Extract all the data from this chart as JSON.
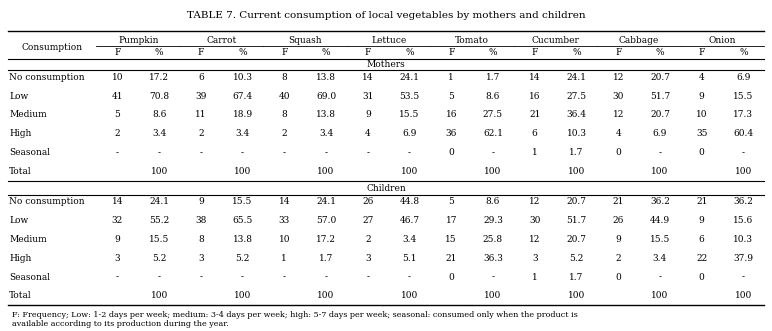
{
  "title": "TABLE 7. Current consumption of local vegetables by mothers and children",
  "footnote": "F: Frequency; Low: 1-2 days per week; medium: 3-4 days per week; high: 5-7 days per week; seasonal: consumed only when the product is\navailable according to its production during the year.",
  "vegetables": [
    "Pumpkin",
    "Carrot",
    "Squash",
    "Lettuce",
    "Tomato",
    "Cucumber",
    "Cabbage",
    "Onion"
  ],
  "consumption_levels": [
    "No consumption",
    "Low",
    "Medium",
    "High",
    "Seasonal",
    "Total"
  ],
  "mothers_data": [
    [
      "10",
      "17.2",
      "6",
      "10.3",
      "8",
      "13.8",
      "14",
      "24.1",
      "1",
      "1.7",
      "14",
      "24.1",
      "12",
      "20.7",
      "4",
      "6.9"
    ],
    [
      "41",
      "70.8",
      "39",
      "67.4",
      "40",
      "69.0",
      "31",
      "53.5",
      "5",
      "8.6",
      "16",
      "27.5",
      "30",
      "51.7",
      "9",
      "15.5"
    ],
    [
      "5",
      "8.6",
      "11",
      "18.9",
      "8",
      "13.8",
      "9",
      "15.5",
      "16",
      "27.5",
      "21",
      "36.4",
      "12",
      "20.7",
      "10",
      "17.3"
    ],
    [
      "2",
      "3.4",
      "2",
      "3.4",
      "2",
      "3.4",
      "4",
      "6.9",
      "36",
      "62.1",
      "6",
      "10.3",
      "4",
      "6.9",
      "35",
      "60.4"
    ],
    [
      "-",
      "-",
      "-",
      "-",
      "-",
      "-",
      "-",
      "-",
      "0",
      "-",
      "1",
      "1.7",
      "0",
      "-",
      "0",
      "-"
    ],
    [
      "",
      "100",
      "",
      "100",
      "",
      "100",
      "",
      "100",
      "",
      "100",
      "",
      "100",
      "",
      "100",
      "",
      "100"
    ]
  ],
  "children_data": [
    [
      "14",
      "24.1",
      "9",
      "15.5",
      "14",
      "24.1",
      "26",
      "44.8",
      "5",
      "8.6",
      "12",
      "20.7",
      "21",
      "36.2",
      "21",
      "36.2"
    ],
    [
      "32",
      "55.2",
      "38",
      "65.5",
      "33",
      "57.0",
      "27",
      "46.7",
      "17",
      "29.3",
      "30",
      "51.7",
      "26",
      "44.9",
      "9",
      "15.6"
    ],
    [
      "9",
      "15.5",
      "8",
      "13.8",
      "10",
      "17.2",
      "2",
      "3.4",
      "15",
      "25.8",
      "12",
      "20.7",
      "9",
      "15.5",
      "6",
      "10.3"
    ],
    [
      "3",
      "5.2",
      "3",
      "5.2",
      "1",
      "1.7",
      "3",
      "5.1",
      "21",
      "36.3",
      "3",
      "5.2",
      "2",
      "3.4",
      "22",
      "37.9"
    ],
    [
      "-",
      "-",
      "-",
      "-",
      "-",
      "-",
      "-",
      "-",
      "0",
      "-",
      "1",
      "1.7",
      "0",
      "-",
      "0",
      "-"
    ],
    [
      "",
      "100",
      "",
      "100",
      "",
      "100",
      "",
      "100",
      "",
      "100",
      "",
      "100",
      "",
      "100",
      "",
      "100"
    ]
  ]
}
